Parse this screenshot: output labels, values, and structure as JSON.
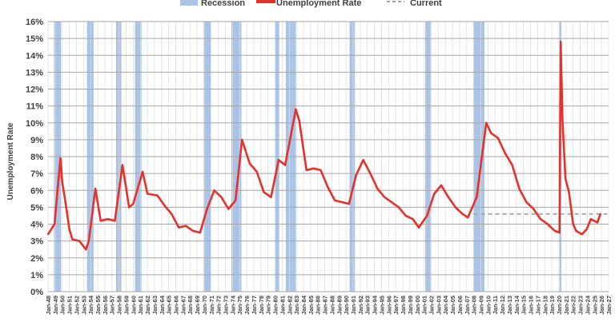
{
  "chart_data": {
    "type": "line",
    "title": "",
    "xlabel": "",
    "ylabel": "Unemployment Rate",
    "ylim": [
      0,
      16
    ],
    "xlim": [
      "Jan-48",
      "Jan-27"
    ],
    "grid": true,
    "legend_position": "top",
    "legend": [
      "Recession",
      "Unemployment Rate",
      "Current"
    ],
    "y_ticks": [
      "0%",
      "1%",
      "2%",
      "3%",
      "4%",
      "5%",
      "6%",
      "7%",
      "8%",
      "9%",
      "10%",
      "11%",
      "12%",
      "13%",
      "14%",
      "15%",
      "16%"
    ],
    "x_ticks": [
      "Jan-48",
      "Jan-49",
      "Jan-50",
      "Jan-51",
      "Jan-52",
      "Jan-53",
      "Jan-54",
      "Jan-55",
      "Jan-56",
      "Jan-57",
      "Jan-58",
      "Jan-59",
      "Jan-60",
      "Jan-61",
      "Jan-62",
      "Jan-63",
      "Jan-64",
      "Jan-65",
      "Jan-66",
      "Jan-67",
      "Jan-68",
      "Jan-69",
      "Jan-70",
      "Jan-71",
      "Jan-72",
      "Jan-73",
      "Jan-74",
      "Jan-75",
      "Jan-76",
      "Jan-77",
      "Jan-78",
      "Jan-79",
      "Jan-80",
      "Jan-81",
      "Jan-82",
      "Jan-83",
      "Jan-84",
      "Jan-85",
      "Jan-86",
      "Jan-87",
      "Jan-88",
      "Jan-89",
      "Jan-90",
      "Jan-91",
      "Jan-92",
      "Jan-93",
      "Jan-94",
      "Jan-95",
      "Jan-96",
      "Jan-97",
      "Jan-98",
      "Jan-99",
      "Jan-00",
      "Jan-01",
      "Jan-02",
      "Jan-03",
      "Jan-04",
      "Jan-05",
      "Jan-06",
      "Jan-07",
      "Jan-08",
      "Jan-09",
      "Jan-10",
      "Jan-11",
      "Jan-12",
      "Jan-13",
      "Jan-14",
      "Jan-15",
      "Jan-16",
      "Jan-17",
      "Jan-18",
      "Jan-19",
      "Jan-20",
      "Jan-21",
      "Jan-22",
      "Jan-23",
      "Jan-24",
      "Jan-25",
      "Jan-26",
      "Jan-27"
    ],
    "recessions": [
      [
        "1948-11",
        "1949-10"
      ],
      [
        "1953-07",
        "1954-05"
      ],
      [
        "1957-08",
        "1958-04"
      ],
      [
        "1960-04",
        "1961-02"
      ],
      [
        "1969-12",
        "1970-11"
      ],
      [
        "1973-11",
        "1975-03"
      ],
      [
        "1980-01",
        "1980-07"
      ],
      [
        "1981-07",
        "1982-11"
      ],
      [
        "1990-07",
        "1991-03"
      ],
      [
        "2001-03",
        "2001-11"
      ],
      [
        "2007-12",
        "2009-06"
      ],
      [
        "2020-02",
        "2020-04"
      ]
    ],
    "current": {
      "value": 4.6,
      "from": "2008-01",
      "to": "2026-12"
    },
    "series": [
      {
        "name": "Unemployment Rate",
        "points": [
          [
            "1948-01",
            3.4
          ],
          [
            "1948-12",
            4.0
          ],
          [
            "1949-05",
            6.0
          ],
          [
            "1949-10",
            7.9
          ],
          [
            "1950-01",
            6.5
          ],
          [
            "1950-06",
            5.4
          ],
          [
            "1951-01",
            3.7
          ],
          [
            "1951-06",
            3.1
          ],
          [
            "1952-06",
            3.0
          ],
          [
            "1953-05",
            2.5
          ],
          [
            "1953-10",
            3.0
          ],
          [
            "1954-09",
            6.1
          ],
          [
            "1955-06",
            4.2
          ],
          [
            "1956-06",
            4.3
          ],
          [
            "1957-06",
            4.2
          ],
          [
            "1958-07",
            7.5
          ],
          [
            "1959-06",
            5.0
          ],
          [
            "1960-01",
            5.2
          ],
          [
            "1961-05",
            7.1
          ],
          [
            "1962-01",
            5.8
          ],
          [
            "1963-06",
            5.7
          ],
          [
            "1964-06",
            5.1
          ],
          [
            "1965-06",
            4.6
          ],
          [
            "1966-06",
            3.8
          ],
          [
            "1967-06",
            3.9
          ],
          [
            "1968-06",
            3.6
          ],
          [
            "1969-06",
            3.5
          ],
          [
            "1970-06",
            4.9
          ],
          [
            "1971-06",
            6.0
          ],
          [
            "1972-06",
            5.6
          ],
          [
            "1973-06",
            4.9
          ],
          [
            "1974-06",
            5.4
          ],
          [
            "1975-05",
            9.0
          ],
          [
            "1976-06",
            7.6
          ],
          [
            "1977-06",
            7.1
          ],
          [
            "1978-06",
            5.9
          ],
          [
            "1979-06",
            5.6
          ],
          [
            "1980-07",
            7.8
          ],
          [
            "1981-06",
            7.5
          ],
          [
            "1982-12",
            10.8
          ],
          [
            "1983-06",
            10.1
          ],
          [
            "1984-06",
            7.2
          ],
          [
            "1985-06",
            7.3
          ],
          [
            "1986-06",
            7.2
          ],
          [
            "1987-06",
            6.2
          ],
          [
            "1988-06",
            5.4
          ],
          [
            "1989-06",
            5.3
          ],
          [
            "1990-06",
            5.2
          ],
          [
            "1991-06",
            6.9
          ],
          [
            "1992-06",
            7.8
          ],
          [
            "1993-06",
            7.0
          ],
          [
            "1994-06",
            6.1
          ],
          [
            "1995-06",
            5.6
          ],
          [
            "1996-06",
            5.3
          ],
          [
            "1997-06",
            5.0
          ],
          [
            "1998-06",
            4.5
          ],
          [
            "1999-06",
            4.3
          ],
          [
            "2000-04",
            3.8
          ],
          [
            "2001-06",
            4.5
          ],
          [
            "2002-06",
            5.8
          ],
          [
            "2003-06",
            6.3
          ],
          [
            "2004-06",
            5.6
          ],
          [
            "2005-06",
            5.0
          ],
          [
            "2006-06",
            4.6
          ],
          [
            "2007-03",
            4.4
          ],
          [
            "2008-06",
            5.6
          ],
          [
            "2009-10",
            10.0
          ],
          [
            "2010-06",
            9.4
          ],
          [
            "2011-06",
            9.1
          ],
          [
            "2012-06",
            8.2
          ],
          [
            "2013-06",
            7.5
          ],
          [
            "2014-06",
            6.1
          ],
          [
            "2015-06",
            5.3
          ],
          [
            "2016-06",
            4.9
          ],
          [
            "2017-06",
            4.3
          ],
          [
            "2018-06",
            4.0
          ],
          [
            "2019-06",
            3.6
          ],
          [
            "2020-02",
            3.5
          ],
          [
            "2020-04",
            14.8
          ],
          [
            "2020-07",
            10.2
          ],
          [
            "2020-12",
            6.7
          ],
          [
            "2021-06",
            5.9
          ],
          [
            "2022-01",
            4.0
          ],
          [
            "2022-06",
            3.6
          ],
          [
            "2023-04",
            3.4
          ],
          [
            "2023-12",
            3.7
          ],
          [
            "2024-07",
            4.3
          ],
          [
            "2025-06",
            4.1
          ],
          [
            "2025-09",
            4.4
          ],
          [
            "2025-11",
            4.6
          ]
        ]
      }
    ],
    "colors": {
      "recession": "#a9c4e6",
      "line": "#e8302a",
      "current": "#a6a6a6",
      "grid_major": "#a6a6a6",
      "grid_minor": "#e0e0e0"
    }
  }
}
